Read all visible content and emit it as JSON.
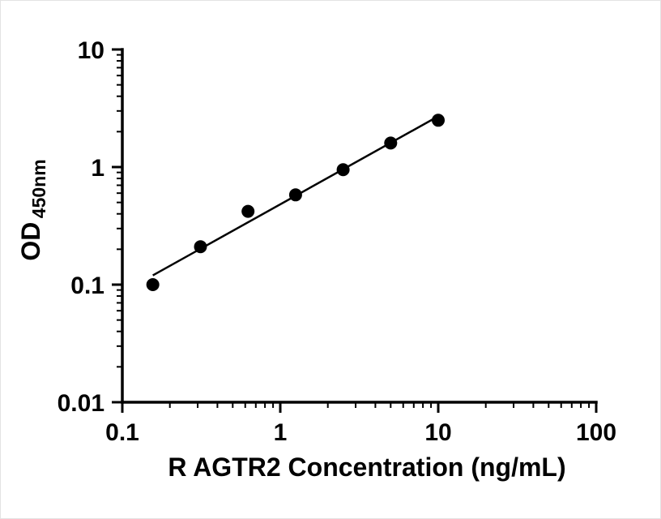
{
  "chart_data": {
    "type": "scatter",
    "title": "",
    "xlabel": "R AGTR2 Concentration (ng/mL)",
    "ylabel_main": "OD",
    "ylabel_sub": "450nm",
    "x_scale": "log",
    "y_scale": "log",
    "xlim": [
      0.1,
      100
    ],
    "ylim": [
      0.01,
      10
    ],
    "x_ticks": [
      "0.1",
      "1",
      "10",
      "100"
    ],
    "y_ticks": [
      "0.01",
      "0.1",
      "1",
      "10"
    ],
    "x_tick_values": [
      0.1,
      1,
      10,
      100
    ],
    "y_tick_values": [
      0.01,
      0.1,
      1,
      10
    ],
    "x": [
      0.156,
      0.3125,
      0.625,
      1.25,
      2.5,
      5,
      10
    ],
    "y": [
      0.1,
      0.21,
      0.42,
      0.58,
      0.95,
      1.6,
      2.5
    ],
    "fit_line": true,
    "grid": false,
    "legend": false,
    "marker_color": "#000000",
    "line_color": "#000000",
    "axis_color": "#000000"
  }
}
